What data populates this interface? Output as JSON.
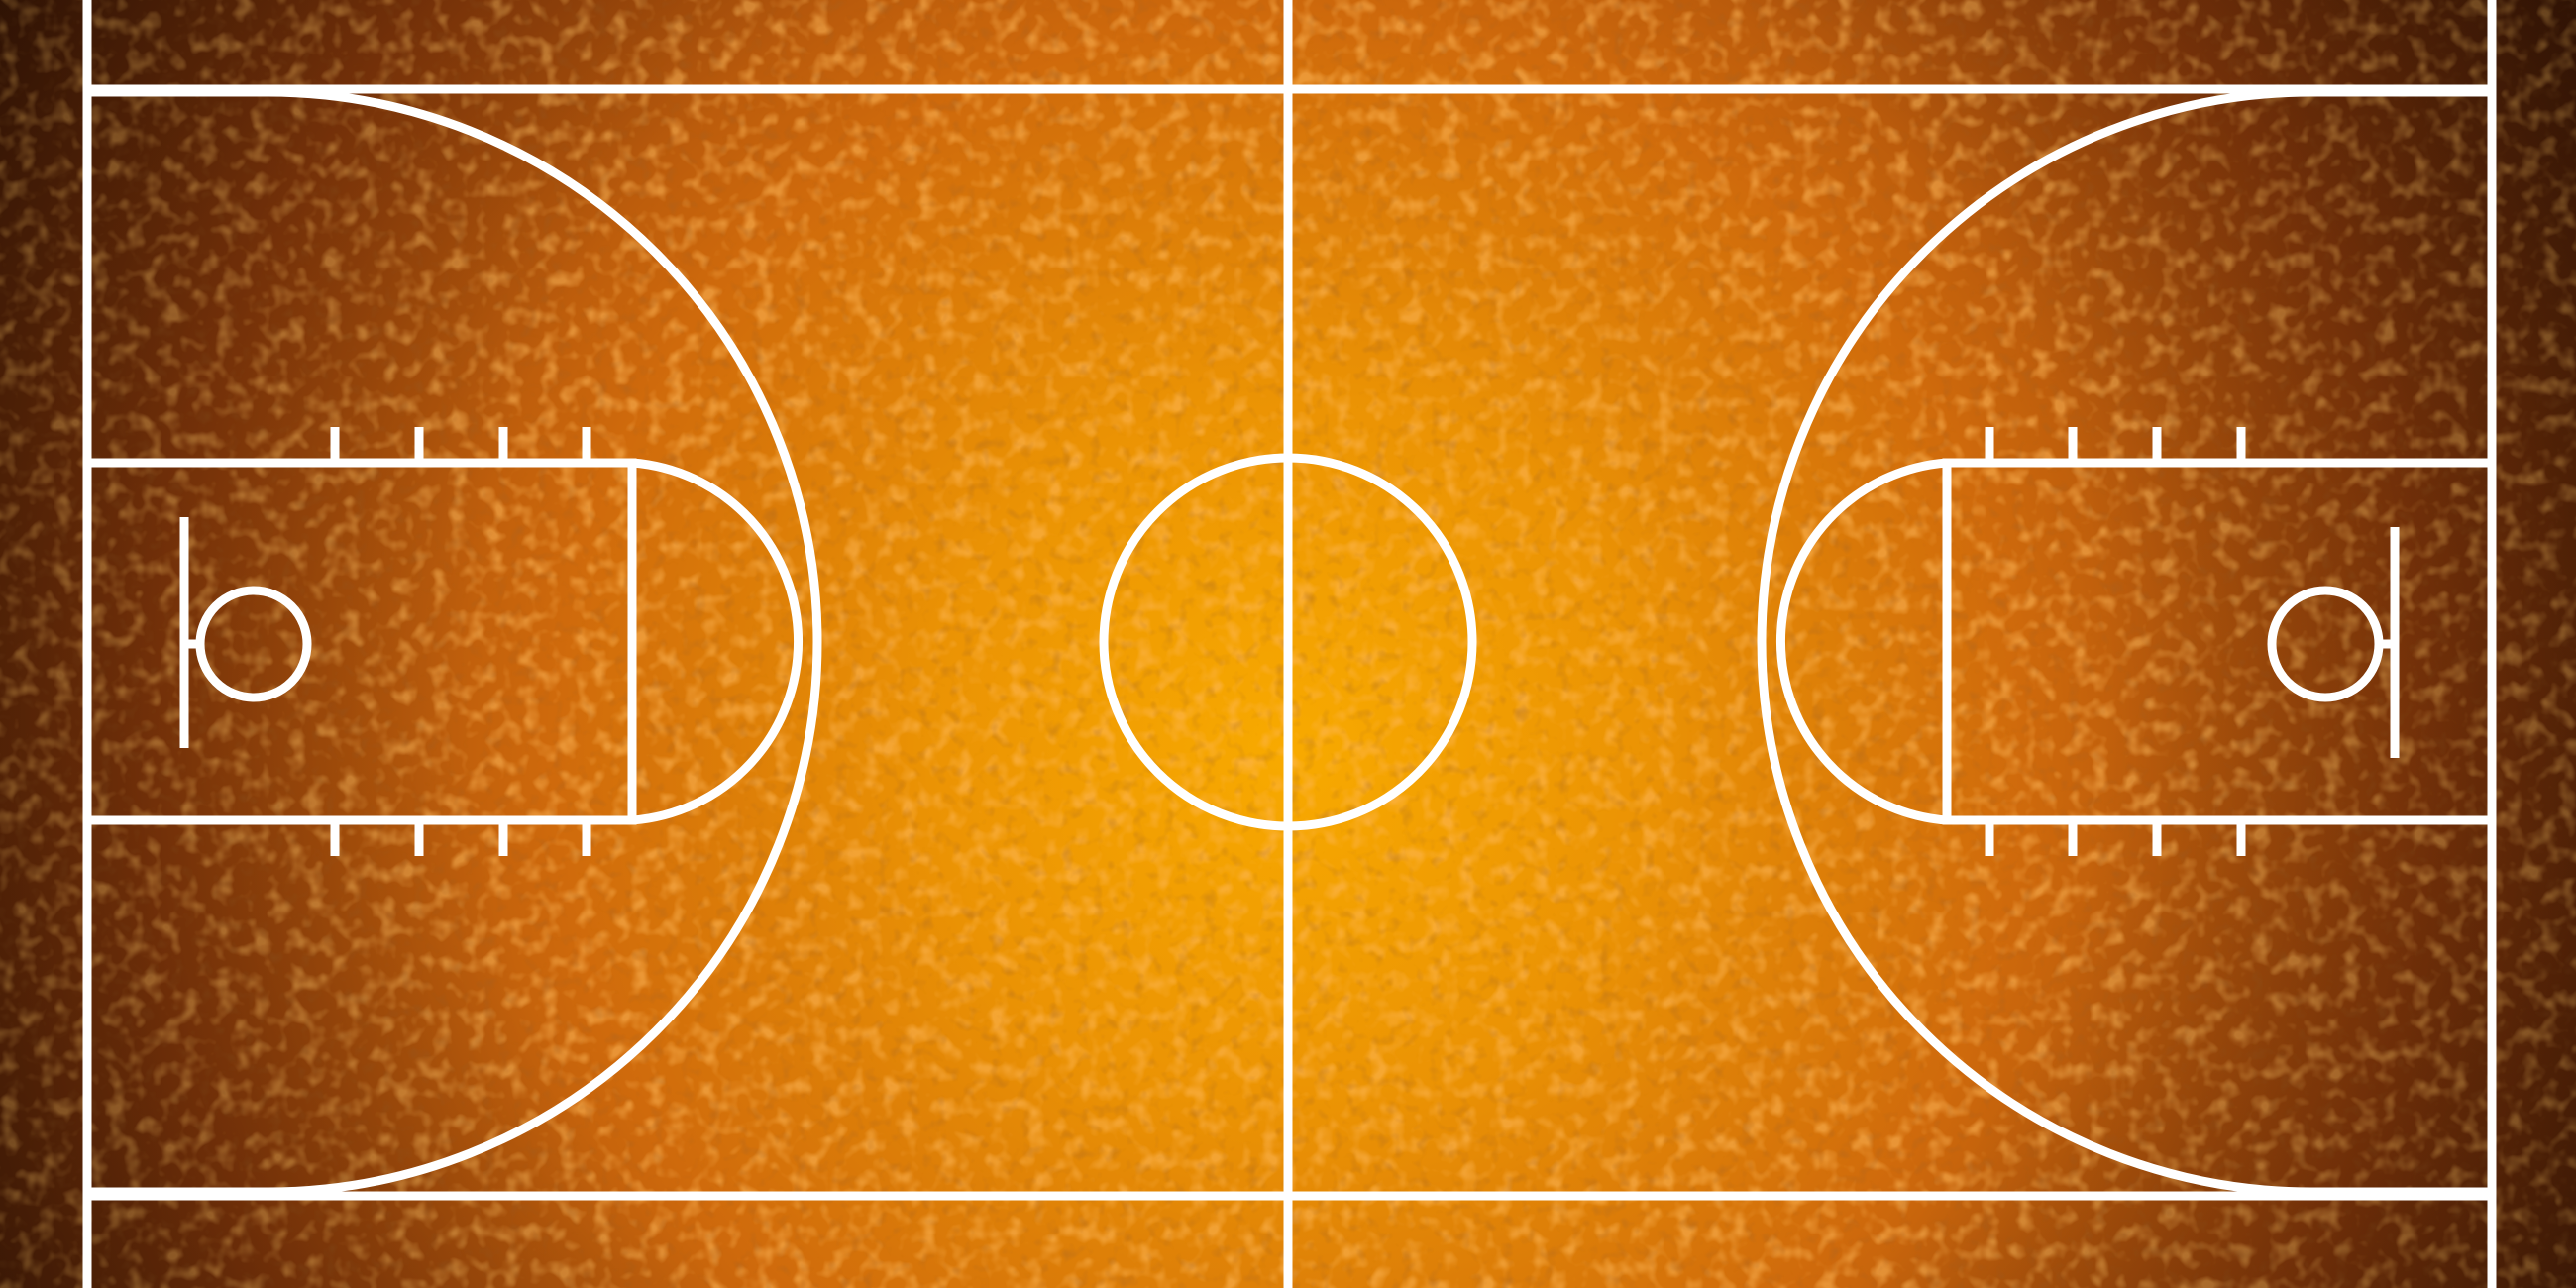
{
  "scene": {
    "subject": "basketball-court",
    "view": "top-down",
    "surface": {
      "center_color": "#f5a300",
      "mid_color": "#d46a0c",
      "edge_color": "#3a1606",
      "speckle_color": "#ff7a1a",
      "texture": "speckled"
    },
    "line_color": "#ffffff",
    "elements": [
      "sideline-left",
      "sideline-right",
      "baseline-top",
      "baseline-bottom",
      "half-court-line",
      "center-circle",
      "three-point-arc-left",
      "three-point-arc-right",
      "free-throw-lane-left",
      "free-throw-lane-right",
      "free-throw-circle-left",
      "free-throw-circle-right",
      "lane-hash-marks-left",
      "lane-hash-marks-right",
      "backboard-left",
      "backboard-right",
      "hoop-left",
      "hoop-right"
    ]
  }
}
